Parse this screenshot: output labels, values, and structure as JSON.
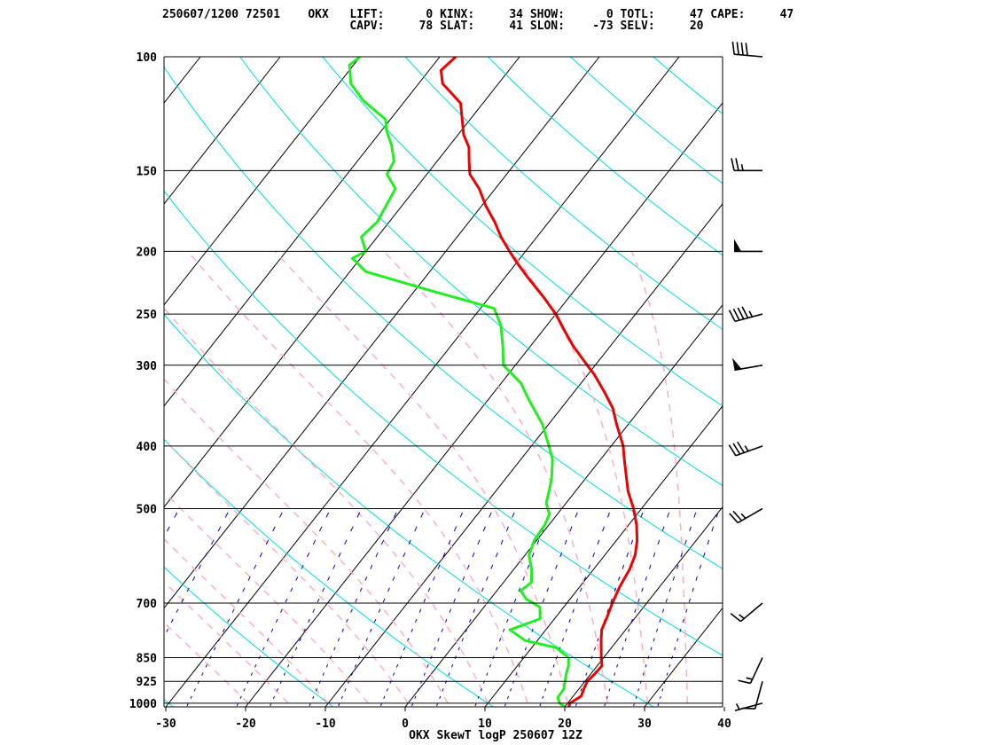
{
  "header": {
    "line1": "250607/1200 72501    OKX   LIFT:      0 KINX:     34 SHOW:      0 TOTL:     47 CAPE:     47",
    "line2": "                           CAPV:     78 SLAT:     41 SLON:    -73 SELV:     20"
  },
  "footer": {
    "title": "OKX SkewT logP 250607 12Z"
  },
  "colors": {
    "temperature": "#ee0000",
    "dewpoint": "#22ee22",
    "isotherm": "#000000",
    "dry_adiabat": "#00dddd",
    "moist_adiabat": "#ffaabb",
    "mixing_ratio": "#0000cc",
    "isobar": "#000000"
  },
  "chart_data": {
    "type": "line",
    "subtype": "skew-t log-p",
    "title": "OKX SkewT logP 250607 12Z",
    "x_axis": {
      "label": "",
      "ticks": [
        -30,
        -20,
        -10,
        0,
        10,
        20,
        30,
        40
      ],
      "range": [
        -30,
        40
      ]
    },
    "y_axis": {
      "label": "",
      "ticks": [
        100,
        150,
        200,
        250,
        300,
        400,
        500,
        700,
        850,
        925,
        1000
      ],
      "range": [
        1013,
        100
      ],
      "scale": "log"
    },
    "series": [
      {
        "values": [
          [
            1013,
            20.5
          ],
          [
            1000,
            20.3
          ],
          [
            975,
            21.0
          ],
          [
            950,
            20.6
          ],
          [
            925,
            20.3
          ],
          [
            900,
            20.5
          ],
          [
            875,
            20.6
          ],
          [
            850,
            19.7
          ],
          [
            800,
            18.0
          ],
          [
            770,
            17.0
          ],
          [
            740,
            16.5
          ],
          [
            700,
            15.7
          ],
          [
            660,
            15.0
          ],
          [
            620,
            14.5
          ],
          [
            590,
            13.8
          ],
          [
            560,
            12.6
          ],
          [
            530,
            11.0
          ],
          [
            500,
            9.0
          ],
          [
            470,
            6.6
          ],
          [
            450,
            5.2
          ],
          [
            420,
            3.0
          ],
          [
            400,
            1.5
          ],
          [
            370,
            -1.5
          ],
          [
            350,
            -3.5
          ],
          [
            330,
            -6.2
          ],
          [
            310,
            -9.2
          ],
          [
            300,
            -11.0
          ],
          [
            280,
            -14.7
          ],
          [
            265,
            -17.3
          ],
          [
            250,
            -20.0
          ],
          [
            235,
            -23.3
          ],
          [
            220,
            -27.0
          ],
          [
            210,
            -29.5
          ],
          [
            200,
            -32.0
          ],
          [
            190,
            -34.5
          ],
          [
            180,
            -36.8
          ],
          [
            170,
            -39.5
          ],
          [
            160,
            -42.0
          ],
          [
            152,
            -44.6
          ],
          [
            145,
            -46.0
          ],
          [
            138,
            -47.4
          ],
          [
            132,
            -49.3
          ],
          [
            125,
            -51.0
          ],
          [
            118,
            -52.8
          ],
          [
            110,
            -57.0
          ],
          [
            105,
            -58.5
          ],
          [
            100,
            -58.0
          ]
        ]
      },
      {
        "values": [
          [
            1013,
            20.0
          ],
          [
            1000,
            19.0
          ],
          [
            980,
            18.2
          ],
          [
            950,
            18.1
          ],
          [
            925,
            17.5
          ],
          [
            900,
            16.9
          ],
          [
            875,
            16.4
          ],
          [
            850,
            15.6
          ],
          [
            820,
            13.0
          ],
          [
            800,
            8.5
          ],
          [
            770,
            5.5
          ],
          [
            740,
            8.2
          ],
          [
            710,
            7.0
          ],
          [
            690,
            4.5
          ],
          [
            670,
            3.0
          ],
          [
            650,
            3.5
          ],
          [
            620,
            2.2
          ],
          [
            590,
            0.5
          ],
          [
            560,
            -0.3
          ],
          [
            530,
            -0.5
          ],
          [
            510,
            -1.0
          ],
          [
            490,
            -2.5
          ],
          [
            470,
            -3.3
          ],
          [
            450,
            -4.2
          ],
          [
            420,
            -6.0
          ],
          [
            400,
            -7.8
          ],
          [
            370,
            -10.8
          ],
          [
            340,
            -14.8
          ],
          [
            320,
            -17.5
          ],
          [
            300,
            -21.5
          ],
          [
            280,
            -23.5
          ],
          [
            260,
            -25.8
          ],
          [
            245,
            -28.3
          ],
          [
            240,
            -31.5
          ],
          [
            230,
            -38.0
          ],
          [
            215,
            -48.0
          ],
          [
            205,
            -51.0
          ],
          [
            200,
            -50.0
          ],
          [
            190,
            -52.0
          ],
          [
            180,
            -51.5
          ],
          [
            170,
            -52.0
          ],
          [
            160,
            -52.5
          ],
          [
            152,
            -55.0
          ],
          [
            145,
            -55.4
          ],
          [
            137,
            -57.3
          ],
          [
            130,
            -59.4
          ],
          [
            125,
            -60.6
          ],
          [
            117,
            -65.2
          ],
          [
            110,
            -68.5
          ],
          [
            103,
            -70.5
          ],
          [
            100,
            -70.0
          ]
        ]
      }
    ],
    "wind_barbs": [
      {
        "pressure": 1000,
        "dir_deg": 255,
        "speed_kt": 5
      },
      {
        "pressure": 925,
        "dir_deg": 195,
        "speed_kt": 10
      },
      {
        "pressure": 850,
        "dir_deg": 205,
        "speed_kt": 15
      },
      {
        "pressure": 700,
        "dir_deg": 230,
        "speed_kt": 15
      },
      {
        "pressure": 500,
        "dir_deg": 240,
        "speed_kt": 25
      },
      {
        "pressure": 400,
        "dir_deg": 250,
        "speed_kt": 35
      },
      {
        "pressure": 300,
        "dir_deg": 260,
        "speed_kt": 50
      },
      {
        "pressure": 250,
        "dir_deg": 255,
        "speed_kt": 45
      },
      {
        "pressure": 200,
        "dir_deg": 270,
        "speed_kt": 50
      },
      {
        "pressure": 150,
        "dir_deg": 270,
        "speed_kt": 25
      },
      {
        "pressure": 100,
        "dir_deg": 275,
        "speed_kt": 40
      }
    ],
    "grid": true,
    "legend": "none"
  }
}
